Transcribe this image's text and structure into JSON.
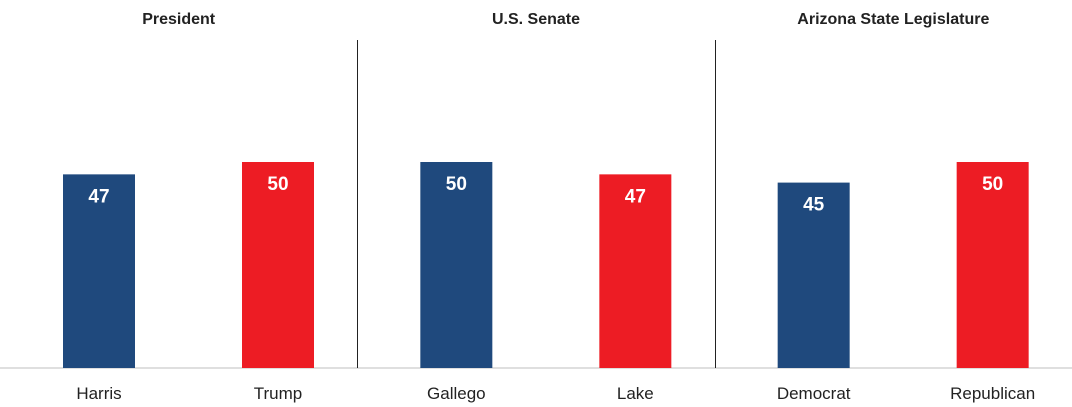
{
  "chart_data": {
    "type": "bar",
    "ylim": [
      0,
      60
    ],
    "grid": false,
    "legend": "none",
    "colors": {
      "dem": "#1f497d",
      "rep": "#ed1c24",
      "divider": "#222222",
      "baseline": "#bfbfbf"
    },
    "panels": [
      {
        "title": "President",
        "categories": [
          "Harris",
          "Trump"
        ],
        "values": [
          47,
          50
        ],
        "parties": [
          "dem",
          "rep"
        ]
      },
      {
        "title": "U.S. Senate",
        "categories": [
          "Gallego",
          "Lake"
        ],
        "values": [
          50,
          47
        ],
        "parties": [
          "dem",
          "rep"
        ]
      },
      {
        "title": "Arizona State Legislature",
        "categories": [
          "Democrat",
          "Republican"
        ],
        "values": [
          45,
          50
        ],
        "parties": [
          "dem",
          "rep"
        ]
      }
    ]
  }
}
